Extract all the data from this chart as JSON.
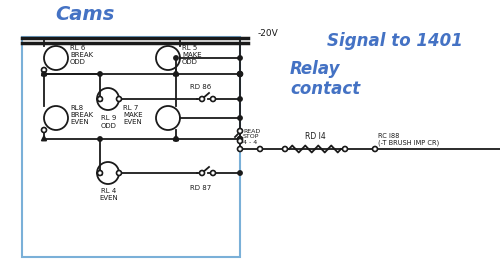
{
  "bg_color": "#ffffff",
  "title_cams": "Cams",
  "title_relay": "Relay\ncontact",
  "title_signal": "Signal to 1401",
  "label_color": "#4472c4",
  "schematic_color": "#1a1a1a",
  "box_color": "#7ab0d8",
  "neg20v_label": "-20V",
  "rl6_label": "RL 6\nBREAK\nODD",
  "rl5_label": "RL 5\nMAKE\nODD",
  "rl9_label": "RL 9\nODD",
  "rd86_label": "RD 86",
  "rl8_label": "RL8\nBREAK\nEVEN",
  "rl7_label": "RL 7\nMAKE\nEVEN",
  "rl4_label": "RL 4\nEVEN",
  "rd87_label": "RD 87",
  "read_stop_label": "READ\nSTOP\n4 - 4",
  "rd14_label": "RD I4",
  "rc188_label": "RC I88\n(-T BRUSH IMP CR)"
}
